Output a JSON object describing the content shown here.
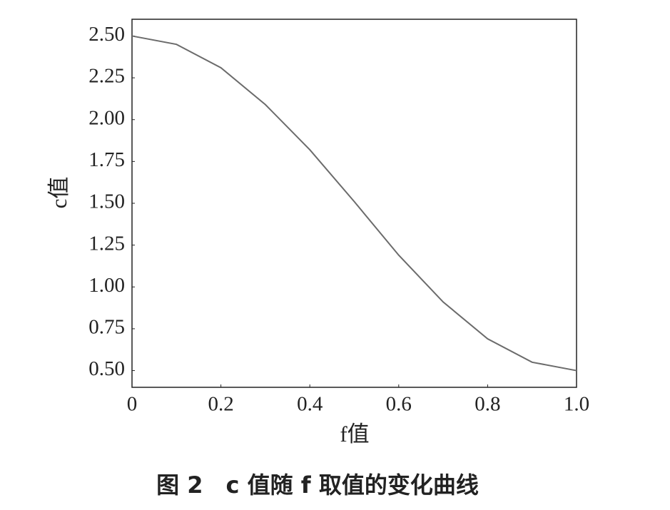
{
  "chart_data": {
    "type": "line",
    "x_label": "f值",
    "y_label": "c值",
    "caption": "图 2　c 值随 f 取值的变化曲线",
    "x": [
      0,
      0.1,
      0.2,
      0.3,
      0.4,
      0.5,
      0.6,
      0.7,
      0.8,
      0.9,
      1.0
    ],
    "series": [
      {
        "name": "c",
        "color": "#6b6b6b",
        "values": [
          2.5,
          2.45,
          2.31,
          2.09,
          1.82,
          1.51,
          1.19,
          0.91,
          0.69,
          0.55,
          0.5
        ]
      }
    ],
    "xlim": [
      0,
      1
    ],
    "ylim": [
      0.4,
      2.6
    ],
    "xticks": [
      0,
      0.2,
      0.4,
      0.6,
      0.8,
      {
        "value": 1,
        "label": "1.0"
      }
    ],
    "yticks": [
      {
        "value": 0.5,
        "label": "0.50"
      },
      {
        "value": 0.75,
        "label": "0.75"
      },
      {
        "value": 1,
        "label": "1.00"
      },
      {
        "value": 1.25,
        "label": "1.25"
      },
      {
        "value": 1.5,
        "label": "1.50"
      },
      {
        "value": 1.75,
        "label": "1.75"
      },
      {
        "value": 2,
        "label": "2.00"
      },
      {
        "value": 2.25,
        "label": "2.25"
      },
      {
        "value": 2.5,
        "label": "2.50"
      }
    ],
    "grid": false
  }
}
